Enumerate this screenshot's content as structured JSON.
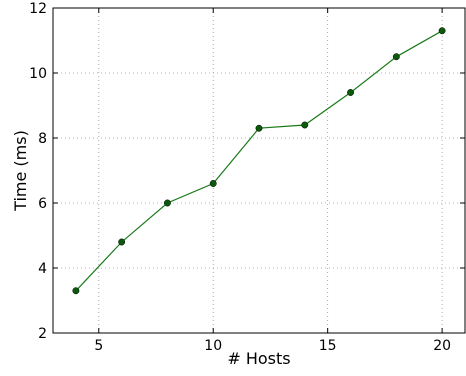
{
  "chart_data": {
    "type": "line",
    "title": "",
    "xlabel": "# Hosts",
    "ylabel": "Time (ms)",
    "xlim": [
      3,
      21
    ],
    "ylim": [
      2,
      12
    ],
    "x_ticks": [
      5,
      10,
      15,
      20
    ],
    "y_ticks": [
      2,
      4,
      6,
      8,
      10,
      12
    ],
    "grid": true,
    "legend": "none",
    "series": [
      {
        "color": "#1a7a1a",
        "marker_color": "#0b5a0b",
        "x": [
          4,
          6,
          8,
          10,
          12,
          14,
          16,
          18,
          20
        ],
        "y": [
          3.3,
          4.8,
          6.0,
          6.6,
          8.3,
          8.4,
          9.4,
          10.5,
          11.3
        ]
      }
    ]
  }
}
